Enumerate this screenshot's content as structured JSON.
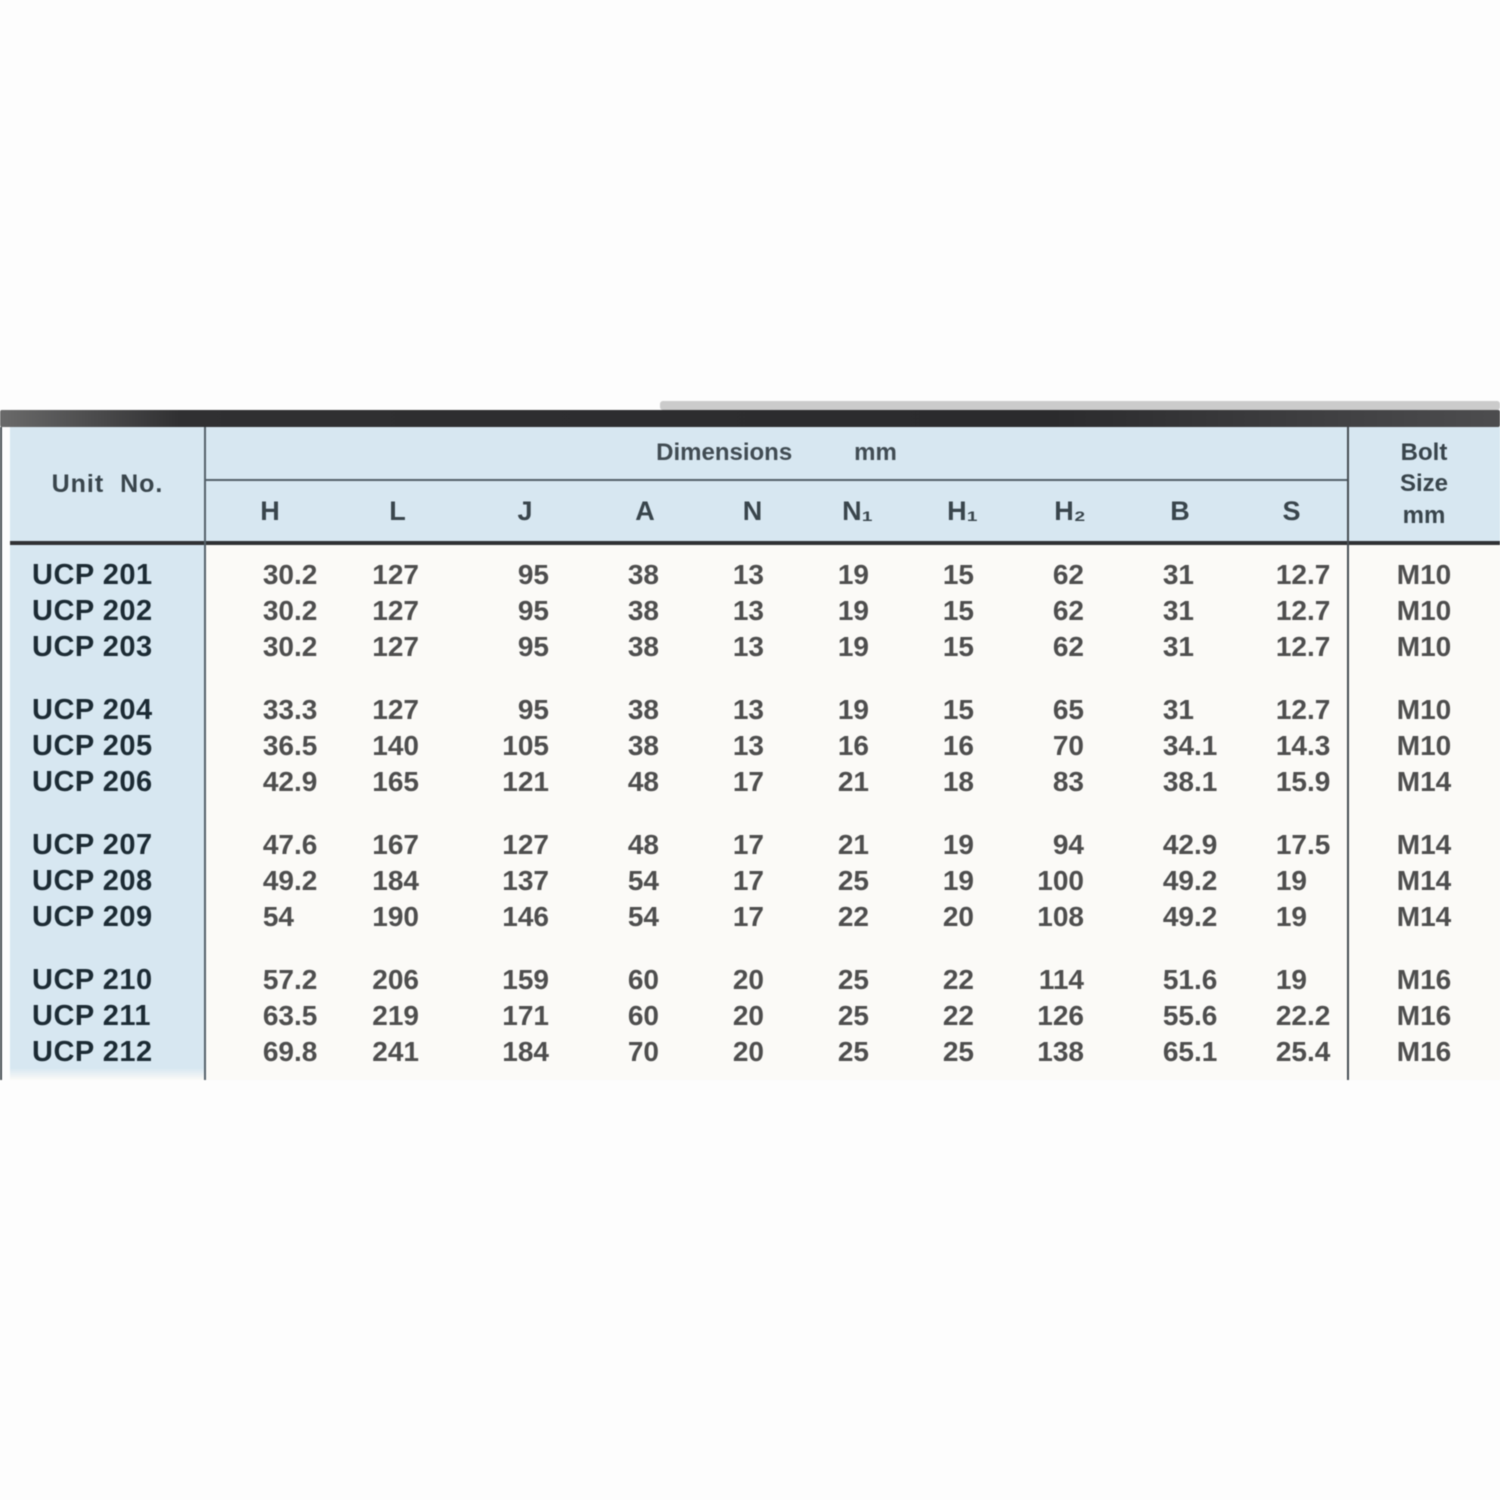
{
  "table": {
    "unit_header": "Unit  No.",
    "dimensions_label": "Dimensions",
    "dimensions_unit": "mm",
    "bolt_header_line1": "Bolt",
    "bolt_header_line2": "Size",
    "bolt_header_line3": "mm",
    "columns": [
      "H",
      "L",
      "J",
      "A",
      "N",
      "N₁",
      "H₁",
      "H₂",
      "B",
      "S"
    ],
    "groups": [
      {
        "rows": [
          {
            "unit": "UCP 201",
            "values": [
              "30.2",
              "127",
              "95",
              "38",
              "13",
              "19",
              "15",
              "62",
              "31",
              "12.7"
            ],
            "bolt": "M10"
          },
          {
            "unit": "UCP 202",
            "values": [
              "30.2",
              "127",
              "95",
              "38",
              "13",
              "19",
              "15",
              "62",
              "31",
              "12.7"
            ],
            "bolt": "M10"
          },
          {
            "unit": "UCP 203",
            "values": [
              "30.2",
              "127",
              "95",
              "38",
              "13",
              "19",
              "15",
              "62",
              "31",
              "12.7"
            ],
            "bolt": "M10"
          }
        ]
      },
      {
        "rows": [
          {
            "unit": "UCP 204",
            "values": [
              "33.3",
              "127",
              "95",
              "38",
              "13",
              "19",
              "15",
              "65",
              "31",
              "12.7"
            ],
            "bolt": "M10"
          },
          {
            "unit": "UCP 205",
            "values": [
              "36.5",
              "140",
              "105",
              "38",
              "13",
              "16",
              "16",
              "70",
              "34.1",
              "14.3"
            ],
            "bolt": "M10"
          },
          {
            "unit": "UCP 206",
            "values": [
              "42.9",
              "165",
              "121",
              "48",
              "17",
              "21",
              "18",
              "83",
              "38.1",
              "15.9"
            ],
            "bolt": "M14"
          }
        ]
      },
      {
        "rows": [
          {
            "unit": "UCP 207",
            "values": [
              "47.6",
              "167",
              "127",
              "48",
              "17",
              "21",
              "19",
              "94",
              "42.9",
              "17.5"
            ],
            "bolt": "M14"
          },
          {
            "unit": "UCP 208",
            "values": [
              "49.2",
              "184",
              "137",
              "54",
              "17",
              "25",
              "19",
              "100",
              "49.2",
              "19"
            ],
            "bolt": "M14"
          },
          {
            "unit": "UCP 209",
            "values": [
              "54",
              "190",
              "146",
              "54",
              "17",
              "22",
              "20",
              "108",
              "49.2",
              "19"
            ],
            "bolt": "M14"
          }
        ]
      },
      {
        "rows": [
          {
            "unit": "UCP 210",
            "values": [
              "57.2",
              "206",
              "159",
              "60",
              "20",
              "25",
              "22",
              "114",
              "51.6",
              "19"
            ],
            "bolt": "M16"
          },
          {
            "unit": "UCP 211",
            "values": [
              "63.5",
              "219",
              "171",
              "60",
              "20",
              "25",
              "22",
              "126",
              "55.6",
              "22.2"
            ],
            "bolt": "M16"
          },
          {
            "unit": "UCP 212",
            "values": [
              "69.8",
              "241",
              "184",
              "70",
              "20",
              "25",
              "25",
              "138",
              "65.1",
              "25.4"
            ],
            "bolt": "M16"
          }
        ]
      }
    ],
    "colors": {
      "header_bg": "#d7e7f1",
      "body_bg": "#fbfaf7",
      "line_dark": "#2f3134",
      "line_mid": "#55616a",
      "unit_text": "#1c2b34",
      "number_text": "#4e4e4e"
    }
  }
}
